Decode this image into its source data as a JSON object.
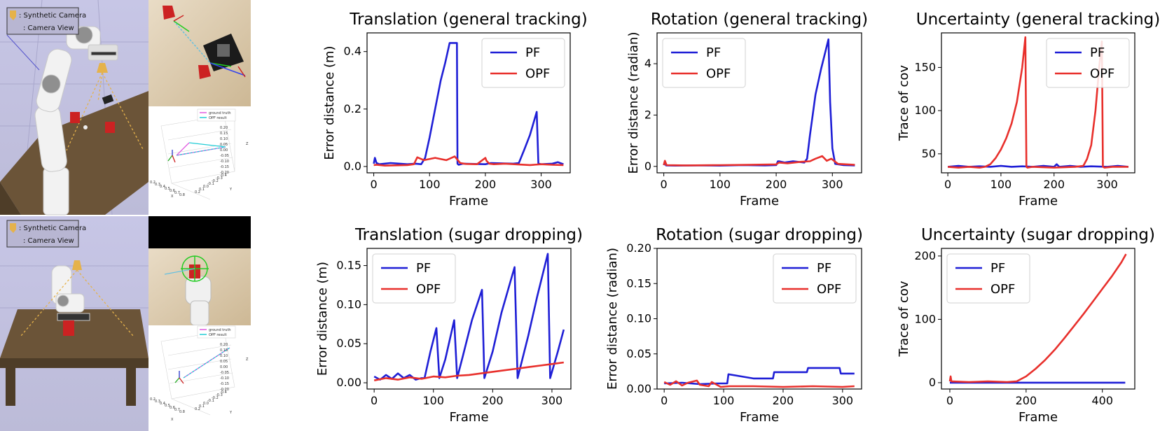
{
  "scene_panels": {
    "top": {
      "legend_synthetic": ": Synthetic Camera",
      "legend_view": ": Camera View",
      "plot3d_legend": [
        "ground truth",
        "OPF result"
      ],
      "plot3d_x_ticks": [
        "0.2",
        "0.3",
        "0.4",
        "0.5",
        "0.6",
        "0.7",
        "0.8"
      ],
      "plot3d_y_ticks": [
        "0.2",
        "0.1",
        "0.0",
        "-0.1",
        "-0.2",
        "-0.3",
        "-0.4"
      ],
      "plot3d_z_ticks": [
        "0.20",
        "0.15",
        "0.10",
        "0.05",
        "0.00",
        "-0.05",
        "-0.10",
        "-0.15",
        "-0.20"
      ],
      "axis_x": "X",
      "axis_y": "Y",
      "axis_z": "Z"
    },
    "bottom": {
      "legend_synthetic": ": Synthetic Camera",
      "legend_view": ": Camera View",
      "plot3d_legend": [
        "ground truth",
        "OPF result"
      ],
      "plot3d_x_ticks": [
        "0.2",
        "0.3",
        "0.4",
        "0.5",
        "0.6",
        "0.7",
        "0.8"
      ],
      "plot3d_y_ticks": [
        "0.2",
        "0.1",
        "0.0",
        "-0.1",
        "-0.2",
        "-0.3",
        "-0.4"
      ],
      "plot3d_z_ticks": [
        "0.20",
        "0.15",
        "0.10",
        "0.05",
        "0.00",
        "-0.05",
        "-0.10",
        "-0.15",
        "-0.20"
      ],
      "axis_x": "X",
      "axis_y": "Y",
      "axis_z": "Z"
    }
  },
  "colors": {
    "pf": "#1f1fd6",
    "opf": "#e8302c"
  },
  "chart_data": [
    {
      "type": "line",
      "title": "Translation (general tracking)",
      "xlabel": "Frame",
      "ylabel": "Error distance (m)",
      "xlim": [
        -12,
        352
      ],
      "ylim": [
        -0.022,
        0.465
      ],
      "xticks": [
        0,
        100,
        200,
        300
      ],
      "yticks": [
        0.0,
        0.2,
        0.4
      ],
      "ytick_labels": [
        "0.0",
        "0.2",
        "0.4"
      ],
      "legend": [
        "PF",
        "OPF"
      ],
      "legend_loc": "upper right",
      "series": [
        {
          "name": "PF",
          "x": [
            0,
            2,
            5,
            10,
            30,
            60,
            75,
            85,
            92,
            100,
            110,
            120,
            128,
            136,
            142,
            149,
            150,
            152,
            160,
            200,
            210,
            250,
            260,
            270,
            280,
            292,
            295,
            300,
            320,
            330,
            340
          ],
          "y": [
            0.01,
            0.03,
            0.012,
            0.008,
            0.012,
            0.008,
            0.01,
            0.008,
            0.03,
            0.1,
            0.2,
            0.3,
            0.36,
            0.43,
            0.43,
            0.43,
            0.01,
            0.006,
            0.01,
            0.008,
            0.012,
            0.01,
            0.012,
            0.06,
            0.11,
            0.19,
            0.01,
            0.008,
            0.01,
            0.015,
            0.008
          ]
        },
        {
          "name": "OPF",
          "x": [
            0,
            5,
            20,
            40,
            60,
            72,
            78,
            90,
            110,
            130,
            145,
            155,
            165,
            185,
            200,
            202,
            207,
            215,
            235,
            260,
            280,
            300,
            320,
            340
          ],
          "y": [
            0.005,
            0.006,
            0.003,
            0.004,
            0.005,
            0.008,
            0.032,
            0.022,
            0.03,
            0.022,
            0.035,
            0.012,
            0.009,
            0.008,
            0.03,
            0.02,
            0.01,
            0.008,
            0.01,
            0.007,
            0.005,
            0.008,
            0.006,
            0.005
          ]
        }
      ]
    },
    {
      "type": "line",
      "title": "Rotation (general tracking)",
      "xlabel": "Frame",
      "ylabel": "Error distance (radian)",
      "xlim": [
        -12,
        352
      ],
      "ylim": [
        -0.25,
        5.2
      ],
      "xticks": [
        0,
        100,
        200,
        300
      ],
      "yticks": [
        0,
        2,
        4
      ],
      "ytick_labels": [
        "0",
        "2",
        "4"
      ],
      "legend": [
        "PF",
        "OPF"
      ],
      "legend_loc": "upper left",
      "series": [
        {
          "name": "PF",
          "x": [
            0,
            2,
            4,
            20,
            60,
            100,
            140,
            180,
            200,
            203,
            205,
            215,
            230,
            250,
            255,
            260,
            270,
            280,
            293,
            296,
            300,
            305,
            320,
            340
          ],
          "y": [
            0.05,
            0.2,
            0.04,
            0.03,
            0.04,
            0.03,
            0.05,
            0.04,
            0.05,
            0.2,
            0.2,
            0.15,
            0.2,
            0.15,
            0.3,
            1.2,
            2.8,
            3.8,
            4.95,
            2.5,
            0.7,
            0.1,
            0.05,
            0.04
          ]
        },
        {
          "name": "OPF",
          "x": [
            0,
            2,
            5,
            40,
            100,
            150,
            200,
            205,
            220,
            245,
            260,
            270,
            282,
            290,
            298,
            310,
            340
          ],
          "y": [
            0.05,
            0.22,
            0.05,
            0.04,
            0.05,
            0.06,
            0.08,
            0.15,
            0.12,
            0.18,
            0.2,
            0.3,
            0.4,
            0.22,
            0.3,
            0.1,
            0.06
          ]
        }
      ]
    },
    {
      "type": "line",
      "title": "Uncertainty (general tracking)",
      "xlabel": "Frame",
      "ylabel": "Trace of cov",
      "xlim": [
        -12,
        352
      ],
      "ylim": [
        28,
        190
      ],
      "xticks": [
        0,
        100,
        200,
        300
      ],
      "yticks": [
        50,
        100,
        150
      ],
      "ytick_labels": [
        "50",
        "100",
        "150"
      ],
      "legend": [
        "PF",
        "OPF"
      ],
      "legend_loc": "upper right",
      "series": [
        {
          "name": "PF",
          "x": [
            0,
            20,
            40,
            60,
            80,
            100,
            120,
            140,
            160,
            180,
            200,
            205,
            210,
            230,
            250,
            270,
            300,
            320,
            340
          ],
          "y": [
            35,
            36,
            35,
            35.5,
            35,
            36,
            35,
            35.5,
            35,
            36,
            35,
            38,
            35,
            36,
            35,
            35.5,
            35,
            36,
            35
          ]
        },
        {
          "name": "OPF",
          "x": [
            0,
            20,
            40,
            60,
            70,
            80,
            90,
            100,
            110,
            120,
            130,
            140,
            146,
            148,
            150,
            160,
            200,
            240,
            255,
            262,
            270,
            278,
            285,
            290,
            292,
            295,
            310,
            340
          ],
          "y": [
            35,
            34,
            35,
            34,
            35,
            38,
            45,
            55,
            68,
            85,
            110,
            150,
            185,
            35,
            34,
            35,
            34,
            35,
            36,
            44,
            60,
            100,
            150,
            180,
            35,
            34,
            35,
            35
          ]
        }
      ]
    },
    {
      "type": "line",
      "title": "Translation (sugar dropping)",
      "xlabel": "Frame",
      "ylabel": "Error distance (m)",
      "xlim": [
        -12,
        332
      ],
      "ylim": [
        -0.008,
        0.172
      ],
      "xticks": [
        0,
        100,
        200,
        300
      ],
      "yticks": [
        0.0,
        0.05,
        0.1,
        0.15
      ],
      "ytick_labels": [
        "0.00",
        "0.05",
        "0.10",
        "0.15"
      ],
      "legend": [
        "PF",
        "OPF"
      ],
      "legend_loc": "upper left",
      "series": [
        {
          "name": "PF",
          "x": [
            0,
            10,
            20,
            30,
            40,
            50,
            60,
            70,
            80,
            85,
            95,
            105,
            110,
            120,
            135,
            140,
            150,
            165,
            182,
            186,
            200,
            215,
            237,
            242,
            260,
            275,
            293,
            297,
            310,
            320
          ],
          "y": [
            0.008,
            0.004,
            0.01,
            0.005,
            0.012,
            0.006,
            0.01,
            0.004,
            0.006,
            0.006,
            0.04,
            0.07,
            0.006,
            0.03,
            0.08,
            0.006,
            0.035,
            0.08,
            0.119,
            0.006,
            0.04,
            0.09,
            0.148,
            0.006,
            0.06,
            0.11,
            0.165,
            0.006,
            0.04,
            0.068
          ]
        },
        {
          "name": "OPF",
          "x": [
            0,
            20,
            40,
            60,
            80,
            100,
            120,
            140,
            160,
            180,
            200,
            220,
            240,
            260,
            280,
            300,
            320
          ],
          "y": [
            0.003,
            0.006,
            0.004,
            0.007,
            0.005,
            0.008,
            0.007,
            0.009,
            0.01,
            0.012,
            0.014,
            0.016,
            0.018,
            0.02,
            0.022,
            0.024,
            0.026
          ]
        }
      ]
    },
    {
      "type": "line",
      "title": "Rotation (sugar dropping)",
      "xlabel": "Frame",
      "ylabel": "Error distance (radian)",
      "xlim": [
        -12,
        332
      ],
      "ylim": [
        0,
        0.2
      ],
      "xticks": [
        0,
        100,
        200,
        300
      ],
      "yticks": [
        0.0,
        0.05,
        0.1,
        0.15,
        0.2
      ],
      "ytick_labels": [
        "0.00",
        "0.05",
        "0.10",
        "0.15",
        "0.20"
      ],
      "legend": [
        "PF",
        "OPF"
      ],
      "legend_loc": "upper right",
      "series": [
        {
          "name": "PF",
          "x": [
            0,
            30,
            60,
            90,
            106,
            108,
            150,
            183,
            185,
            240,
            242,
            295,
            297,
            320
          ],
          "y": [
            0.008,
            0.009,
            0.007,
            0.008,
            0.008,
            0.021,
            0.015,
            0.015,
            0.024,
            0.024,
            0.03,
            0.03,
            0.022,
            0.022
          ]
        },
        {
          "name": "OPF",
          "x": [
            0,
            10,
            20,
            30,
            40,
            55,
            60,
            75,
            80,
            95,
            110,
            150,
            200,
            250,
            300,
            320
          ],
          "y": [
            0.01,
            0.006,
            0.011,
            0.005,
            0.009,
            0.012,
            0.006,
            0.004,
            0.01,
            0.003,
            0.004,
            0.004,
            0.003,
            0.004,
            0.003,
            0.004
          ]
        }
      ]
    },
    {
      "type": "line",
      "title": "Uncertainty (sugar dropping)",
      "xlabel": "Frame",
      "ylabel": "Trace of cov",
      "xlim": [
        -22,
        485
      ],
      "ylim": [
        -10,
        212
      ],
      "xticks": [
        0,
        200,
        400
      ],
      "yticks": [
        0,
        100,
        200
      ],
      "ytick_labels": [
        "0",
        "100",
        "200"
      ],
      "legend": [
        "PF",
        "OPF"
      ],
      "legend_loc": "upper left",
      "series": [
        {
          "name": "PF",
          "x": [
            0,
            460
          ],
          "y": [
            0,
            0
          ]
        },
        {
          "name": "OPF",
          "x": [
            0,
            2,
            4,
            50,
            100,
            150,
            175,
            200,
            225,
            250,
            275,
            300,
            325,
            350,
            375,
            400,
            425,
            450,
            462
          ],
          "y": [
            2,
            10,
            2,
            1,
            2,
            1,
            2,
            10,
            22,
            36,
            52,
            70,
            89,
            108,
            128,
            148,
            168,
            190,
            203
          ]
        }
      ]
    }
  ]
}
